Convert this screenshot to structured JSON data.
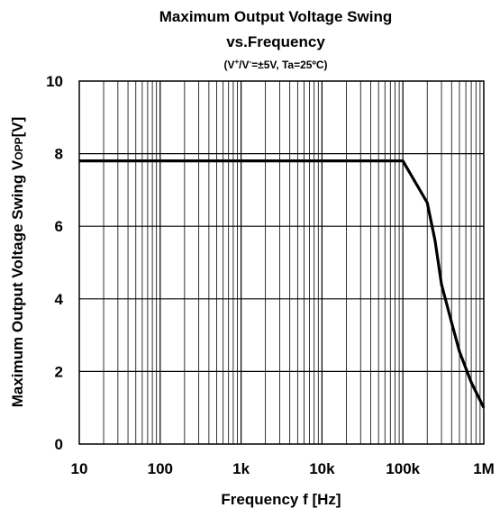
{
  "chart_data": {
    "type": "line",
    "title": "Maximum Output Voltage Swing",
    "title_line2": "vs.Frequency",
    "subtitle": {
      "open": "(V",
      "sup1": "+",
      "mid": "/V",
      "sup2": "-",
      "rest": "=±5V, Ta=25ºC)"
    },
    "xlabel": "Frequency f [Hz]",
    "ylabel": {
      "main": "Maximum Output Voltage Swing  V",
      "sub": "OPP",
      "unit": "[V]"
    },
    "x_scale": "log",
    "xlim": [
      10,
      1000000
    ],
    "ylim": [
      0,
      10
    ],
    "x_ticks": [
      {
        "value": 10,
        "label": "10"
      },
      {
        "value": 100,
        "label": "100"
      },
      {
        "value": 1000,
        "label": "1k"
      },
      {
        "value": 10000,
        "label": "10k"
      },
      {
        "value": 100000,
        "label": "100k"
      },
      {
        "value": 1000000,
        "label": "1M"
      }
    ],
    "y_ticks": [
      {
        "value": 0,
        "label": "0"
      },
      {
        "value": 2,
        "label": "2"
      },
      {
        "value": 4,
        "label": "4"
      },
      {
        "value": 6,
        "label": "6"
      },
      {
        "value": 8,
        "label": "8"
      },
      {
        "value": 10,
        "label": "10"
      }
    ],
    "grid": true,
    "series": [
      {
        "color": "#000000",
        "x": [
          10,
          100,
          1000,
          10000,
          100000,
          200000,
          250000,
          300000,
          400000,
          500000,
          700000,
          1000000
        ],
        "y": [
          7.8,
          7.8,
          7.8,
          7.8,
          7.8,
          6.65,
          5.6,
          4.4,
          3.35,
          2.55,
          1.7,
          1.0
        ]
      }
    ]
  }
}
